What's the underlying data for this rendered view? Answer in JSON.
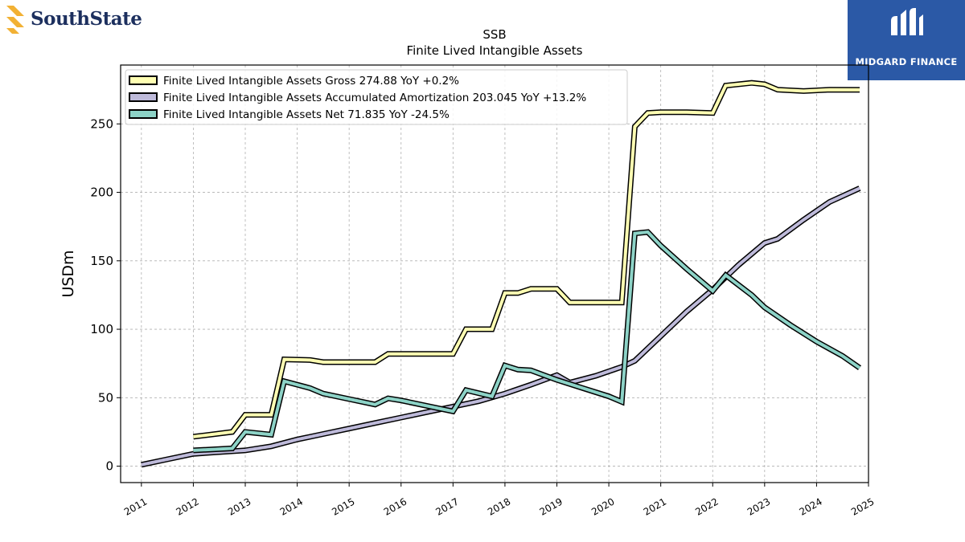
{
  "logos": {
    "left_text": "SouthState",
    "left_color": "#1c2f5e",
    "left_icon_color": "#f2b134",
    "right_text": "MIDGARD FINANCE",
    "right_bg": "#2b59a6"
  },
  "chart_data": {
    "type": "line",
    "title": "SSB",
    "subtitle": "Finite Lived Intangible Assets",
    "ylabel": "USDm",
    "xlabel": "",
    "xlim": [
      2010.6,
      2025.0
    ],
    "ylim": [
      -12,
      293
    ],
    "xticks": [
      "2011",
      "2012",
      "2013",
      "2014",
      "2015",
      "2016",
      "2017",
      "2018",
      "2019",
      "2020",
      "2021",
      "2022",
      "2023",
      "2024",
      "2025"
    ],
    "yticks": [
      "0",
      "50",
      "100",
      "150",
      "200",
      "250"
    ],
    "grid": true,
    "legend_position": "upper-left",
    "series": [
      {
        "name": "Finite Lived Intangible Assets Gross  274.88 YoY +0.2%",
        "color": "#ffffb3",
        "points": [
          [
            2012.0,
            21.5
          ],
          [
            2012.75,
            25.0
          ],
          [
            2013.0,
            37.5
          ],
          [
            2013.5,
            37.5
          ],
          [
            2013.75,
            78.0
          ],
          [
            2014.25,
            77.5
          ],
          [
            2014.5,
            76.0
          ],
          [
            2015.5,
            76.0
          ],
          [
            2015.75,
            82.0
          ],
          [
            2017.0,
            82.0
          ],
          [
            2017.25,
            100.0
          ],
          [
            2017.75,
            100.0
          ],
          [
            2018.0,
            126.5
          ],
          [
            2018.25,
            126.5
          ],
          [
            2018.5,
            129.5
          ],
          [
            2019.0,
            129.5
          ],
          [
            2019.25,
            119.5
          ],
          [
            2020.25,
            119.5
          ],
          [
            2020.5,
            248.0
          ],
          [
            2020.75,
            258.0
          ],
          [
            2021.0,
            258.5
          ],
          [
            2021.5,
            258.5
          ],
          [
            2022.0,
            258.0
          ],
          [
            2022.25,
            278.0
          ],
          [
            2022.75,
            280.0
          ],
          [
            2023.0,
            279.0
          ],
          [
            2023.25,
            275.0
          ],
          [
            2023.75,
            274.0
          ],
          [
            2024.25,
            275.0
          ],
          [
            2024.83,
            274.88
          ]
        ]
      },
      {
        "name": "Finite Lived Intangible Assets Accumulated Amortization  203.045 YoY +13.2%",
        "color": "#bebada",
        "points": [
          [
            2011.0,
            1.0
          ],
          [
            2011.5,
            5.0
          ],
          [
            2012.0,
            9.0
          ],
          [
            2013.0,
            11.5
          ],
          [
            2013.5,
            14.5
          ],
          [
            2014.0,
            19.5
          ],
          [
            2014.5,
            23.5
          ],
          [
            2015.0,
            27.5
          ],
          [
            2015.5,
            31.5
          ],
          [
            2016.0,
            35.5
          ],
          [
            2016.5,
            39.5
          ],
          [
            2017.0,
            43.5
          ],
          [
            2017.5,
            47.5
          ],
          [
            2018.0,
            53.0
          ],
          [
            2018.5,
            59.5
          ],
          [
            2019.0,
            66.5
          ],
          [
            2019.25,
            61.0
          ],
          [
            2019.75,
            66.0
          ],
          [
            2020.25,
            72.5
          ],
          [
            2020.5,
            77.0
          ],
          [
            2021.0,
            95.0
          ],
          [
            2021.5,
            113.0
          ],
          [
            2022.0,
            129.0
          ],
          [
            2022.5,
            147.0
          ],
          [
            2023.0,
            163.0
          ],
          [
            2023.25,
            166.0
          ],
          [
            2023.75,
            180.0
          ],
          [
            2024.25,
            193.0
          ],
          [
            2024.83,
            203.045
          ]
        ]
      },
      {
        "name": "Finite Lived Intangible Assets Net  71.835 YoY -24.5%",
        "color": "#8dd3c7",
        "points": [
          [
            2012.0,
            11.5
          ],
          [
            2012.75,
            13.0
          ],
          [
            2013.0,
            25.0
          ],
          [
            2013.5,
            23.0
          ],
          [
            2013.75,
            62.0
          ],
          [
            2014.25,
            57.0
          ],
          [
            2014.5,
            53.0
          ],
          [
            2015.0,
            49.0
          ],
          [
            2015.5,
            45.0
          ],
          [
            2015.75,
            49.5
          ],
          [
            2016.0,
            48.0
          ],
          [
            2017.0,
            40.0
          ],
          [
            2017.25,
            55.5
          ],
          [
            2017.75,
            51.0
          ],
          [
            2018.0,
            73.5
          ],
          [
            2018.25,
            70.5
          ],
          [
            2018.5,
            70.0
          ],
          [
            2019.0,
            63.0
          ],
          [
            2019.5,
            57.0
          ],
          [
            2020.0,
            51.0
          ],
          [
            2020.25,
            47.0
          ],
          [
            2020.5,
            170.0
          ],
          [
            2020.75,
            171.0
          ],
          [
            2021.0,
            161.0
          ],
          [
            2021.5,
            144.0
          ],
          [
            2022.0,
            128.0
          ],
          [
            2022.25,
            139.5
          ],
          [
            2022.75,
            125.0
          ],
          [
            2023.0,
            116.0
          ],
          [
            2023.5,
            103.0
          ],
          [
            2024.0,
            91.0
          ],
          [
            2024.5,
            80.5
          ],
          [
            2024.83,
            71.835
          ]
        ]
      }
    ]
  }
}
